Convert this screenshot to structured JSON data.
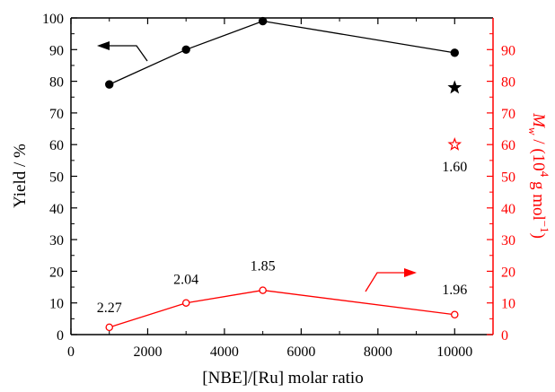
{
  "chart_data": {
    "type": "line",
    "xlabel": "[NBE]/[Ru] molar ratio",
    "ylabel_left": "Yield / %",
    "ylabel_right": {
      "symbol": "M",
      "subscript": "w",
      "prefix": " / (10",
      "exponent": "4",
      "middle": " g mol",
      "exponent2": "−1",
      "suffix": ")"
    },
    "xlim": [
      0,
      11000
    ],
    "ylim_left": [
      0,
      100
    ],
    "ylim_right": [
      0,
      100
    ],
    "xticks": [
      0,
      2000,
      4000,
      6000,
      8000,
      10000
    ],
    "yticks_left": [
      0,
      10,
      20,
      30,
      40,
      50,
      60,
      70,
      80,
      90,
      100
    ],
    "yticks_right": [
      0,
      10,
      20,
      30,
      40,
      50,
      60,
      70,
      80,
      90
    ],
    "colors": {
      "left": "#000000",
      "right": "#ff0000"
    },
    "series": [
      {
        "axis": "left",
        "marker": "filled-circle",
        "x": [
          1000,
          3000,
          5000,
          10000
        ],
        "y": [
          79,
          90,
          99,
          89
        ]
      },
      {
        "axis": "right",
        "marker": "open-circle",
        "x": [
          1000,
          3000,
          5000,
          10000
        ],
        "y": [
          2.3,
          10,
          14,
          6.3
        ]
      }
    ],
    "extra_points": [
      {
        "axis": "left",
        "marker": "filled-star",
        "x": 10000,
        "y": 78
      },
      {
        "axis": "right",
        "marker": "open-star",
        "x": 10000,
        "y": 60
      }
    ],
    "pdi_labels": [
      {
        "text": "2.27",
        "x": 1000,
        "y": 2.3
      },
      {
        "text": "2.04",
        "x": 3000,
        "y": 10
      },
      {
        "text": "1.85",
        "x": 5000,
        "y": 14
      },
      {
        "text": "1.96",
        "x": 10000,
        "y": 6.3
      },
      {
        "text": "1.60",
        "x": 10000,
        "y": 60
      }
    ],
    "axis_arrows": [
      {
        "series_axis": "left",
        "direction": "left"
      },
      {
        "series_axis": "right",
        "direction": "right"
      }
    ]
  }
}
